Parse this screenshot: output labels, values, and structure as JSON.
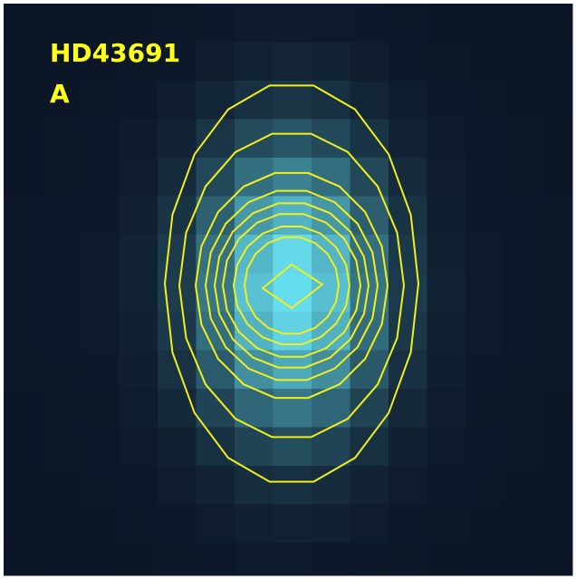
{
  "label": {
    "line1": "HD43691",
    "line2": "A"
  }
}
